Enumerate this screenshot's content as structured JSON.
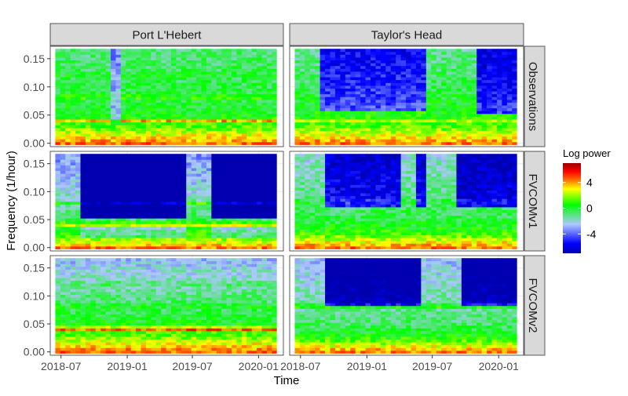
{
  "chart_data": {
    "type": "heatmap",
    "xlabel": "Time",
    "ylabel": "Frequency (1/hour)",
    "columns": [
      "Port L'Hebert",
      "Taylor's Head"
    ],
    "rows": [
      "Observations",
      "FVCOMv1",
      "FVCOMv2"
    ],
    "x_ticks": [
      "2018-07",
      "2019-01",
      "2019-07",
      "2020-01"
    ],
    "x_tick_values": [
      "2018-07-01",
      "2019-01-01",
      "2019-07-01",
      "2020-01-01"
    ],
    "xlim": [
      "2018-06-01",
      "2020-03-10"
    ],
    "y_ticks": [
      "0.00",
      "0.05",
      "0.10",
      "0.15"
    ],
    "y_tick_values": [
      0,
      0.05,
      0.1,
      0.15
    ],
    "ylim": [
      -0.006,
      0.172
    ],
    "frequency_range": [
      0.0,
      0.165
    ],
    "frequency_band": 0.005,
    "time_range": [
      "2018-06-15",
      "2020-02-20"
    ],
    "time_window_days": 14,
    "legend": {
      "title": "Log power",
      "ticks": [
        "4",
        "0",
        "-4"
      ],
      "tick_values": [
        4,
        0,
        -4
      ],
      "range": [
        -7,
        7
      ],
      "colors": [
        "#0000b0",
        "#0000ff",
        "#adc8ff",
        "#00ff00",
        "#ffff00",
        "#ff6600",
        "#ff0000",
        "#990000"
      ],
      "color_stops": [
        -7,
        -5.5,
        -2.5,
        0.5,
        3,
        4.5,
        5.7,
        7
      ]
    },
    "grid": true,
    "legend_position": "right",
    "panels": [
      {
        "column": "Port L'Hebert",
        "row": "Observations",
        "events": [
          {
            "start": "2018-11-15",
            "end": "2018-12-20",
            "freq_min": 0.04,
            "freq_max": 0.17,
            "delta": -2.6
          }
        ],
        "profile": [
          [
            0.0,
            4.5
          ],
          [
            0.01,
            3.3
          ],
          [
            0.02,
            2.3
          ],
          [
            0.03,
            1.2
          ],
          [
            0.05,
            0.2
          ],
          [
            0.08,
            -0.2
          ],
          [
            0.12,
            -0.5
          ],
          [
            0.165,
            -0.9
          ]
        ],
        "lines": [
          {
            "freq": 0.04,
            "delta": 3.3,
            "width": 0.004
          },
          {
            "freq": 0.082,
            "delta": 1.2,
            "width": 0.004
          },
          {
            "freq": 0.122,
            "delta": 0.8,
            "width": 0.004
          }
        ]
      },
      {
        "column": "Taylor's Head",
        "row": "Observations",
        "events": [
          {
            "start": "2018-08-20",
            "end": "2019-06-15",
            "freq_min": 0.055,
            "freq_max": 0.17,
            "delta": -4.5
          },
          {
            "start": "2019-11-01",
            "end": "2020-02-20",
            "freq_min": 0.05,
            "freq_max": 0.17,
            "delta": -5
          }
        ],
        "profile": [
          [
            0.0,
            4.4
          ],
          [
            0.01,
            3.2
          ],
          [
            0.02,
            2.2
          ],
          [
            0.03,
            1.3
          ],
          [
            0.05,
            0.5
          ],
          [
            0.1,
            -0.4
          ],
          [
            0.165,
            -1.2
          ]
        ],
        "lines": [
          {
            "freq": 0.04,
            "delta": 1.5,
            "width": 0.004
          }
        ]
      },
      {
        "column": "Port L'Hebert",
        "row": "FVCOMv1",
        "events": [
          {
            "start": "2018-08-25",
            "end": "2019-06-20",
            "freq_min": 0.05,
            "freq_max": 0.17,
            "delta": -7
          },
          {
            "start": "2019-08-25",
            "end": "2020-02-20",
            "freq_min": 0.05,
            "freq_max": 0.17,
            "delta": -7
          },
          {
            "start": "2018-08-25",
            "end": "2019-06-20",
            "freq_min": 0.02,
            "freq_max": 0.036,
            "delta": -2.2
          },
          {
            "start": "2019-08-25",
            "end": "2020-02-20",
            "freq_min": 0.02,
            "freq_max": 0.036,
            "delta": -2.2
          }
        ],
        "profile": [
          [
            0.0,
            4.3
          ],
          [
            0.01,
            2.5
          ],
          [
            0.02,
            1.5
          ],
          [
            0.03,
            0.7
          ],
          [
            0.05,
            -0.6
          ],
          [
            0.08,
            -1.5
          ],
          [
            0.12,
            -2.5
          ],
          [
            0.165,
            -3.2
          ]
        ],
        "lines": [
          {
            "freq": 0.041,
            "delta": 3,
            "width": 0.004
          },
          {
            "freq": 0.082,
            "delta": 4,
            "width": 0.003
          }
        ]
      },
      {
        "column": "Taylor's Head",
        "row": "FVCOMv1",
        "events": [
          {
            "start": "2018-09-01",
            "end": "2019-04-10",
            "freq_min": 0.07,
            "freq_max": 0.17,
            "delta": -4.5
          },
          {
            "start": "2019-05-15",
            "end": "2019-06-10",
            "freq_min": 0.07,
            "freq_max": 0.17,
            "delta": -4.5
          },
          {
            "start": "2019-09-01",
            "end": "2020-02-20",
            "freq_min": 0.07,
            "freq_max": 0.17,
            "delta": -5
          }
        ],
        "profile": [
          [
            0.0,
            4.4
          ],
          [
            0.01,
            3
          ],
          [
            0.02,
            1.6
          ],
          [
            0.03,
            0.6
          ],
          [
            0.05,
            -0.3
          ],
          [
            0.1,
            -1.2
          ],
          [
            0.165,
            -2
          ]
        ],
        "lines": [
          {
            "freq": 0.082,
            "delta": 1,
            "width": 0.004
          }
        ]
      },
      {
        "column": "Port L'Hebert",
        "row": "FVCOMv2",
        "events": [],
        "profile": [
          [
            0.0,
            4.6
          ],
          [
            0.01,
            3.4
          ],
          [
            0.02,
            2.4
          ],
          [
            0.03,
            1.2
          ],
          [
            0.05,
            0.3
          ],
          [
            0.08,
            -0.6
          ],
          [
            0.12,
            -1.5
          ],
          [
            0.165,
            -2.6
          ]
        ],
        "lines": [
          {
            "freq": 0.041,
            "delta": 4.5,
            "width": 0.004
          },
          {
            "freq": 0.082,
            "delta": 1,
            "width": 0.004
          },
          {
            "freq": 0.122,
            "delta": 0.8,
            "width": 0.004
          }
        ]
      },
      {
        "column": "Taylor's Head",
        "row": "FVCOMv2",
        "events": [
          {
            "start": "2018-09-01",
            "end": "2019-06-01",
            "freq_min": 0.085,
            "freq_max": 0.17,
            "delta": -5.5
          },
          {
            "start": "2019-09-20",
            "end": "2020-02-20",
            "freq_min": 0.085,
            "freq_max": 0.17,
            "delta": -5.5
          }
        ],
        "profile": [
          [
            0.0,
            4.3
          ],
          [
            0.01,
            2.8
          ],
          [
            0.02,
            1.3
          ],
          [
            0.03,
            0.3
          ],
          [
            0.05,
            -0.7
          ],
          [
            0.1,
            -1.6
          ],
          [
            0.165,
            -2.6
          ]
        ],
        "lines": [
          {
            "freq": 0.082,
            "delta": 2.5,
            "width": 0.004
          }
        ]
      }
    ]
  }
}
